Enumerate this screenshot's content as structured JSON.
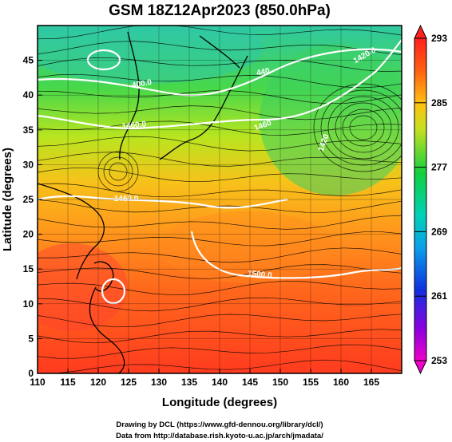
{
  "title": "GSM 18Z12Apr2023 (850.0hPa)",
  "chart_data": {
    "type": "map",
    "title": "GSM 18Z12Apr2023 (850.0hPa)",
    "xlabel": "Longitude (degrees)",
    "ylabel": "Latitude  (degrees)",
    "xlim": [
      110,
      170
    ],
    "ylim": [
      0,
      50
    ],
    "xticks": [
      "110",
      "115",
      "120",
      "125",
      "130",
      "135",
      "140",
      "145",
      "150",
      "155",
      "160",
      "165"
    ],
    "yticks": [
      "0",
      "5",
      "10",
      "15",
      "20",
      "25",
      "30",
      "35",
      "40",
      "45"
    ],
    "grid": true,
    "colorbar": {
      "min": 253,
      "max": 293,
      "ticks": [
        "293",
        "285",
        "277",
        "269",
        "261",
        "253"
      ],
      "orientation": "vertical",
      "placement": "right"
    },
    "contour_labels": [
      "400.0",
      "1460.0",
      "440",
      "1420.0",
      "1460",
      "1420",
      "1460.0",
      "1500.0"
    ],
    "features": {
      "temperature_field": "shaded (K)",
      "streamlines": "wind",
      "contours": "geopotential height (white)"
    }
  },
  "footer": {
    "line1": "Drawing by DCL (https://www.gfd-dennou.org/library/dcl/)",
    "line2": "Data from http://database.rish.kyoto-u.ac.jp/arch/jmadata/"
  }
}
